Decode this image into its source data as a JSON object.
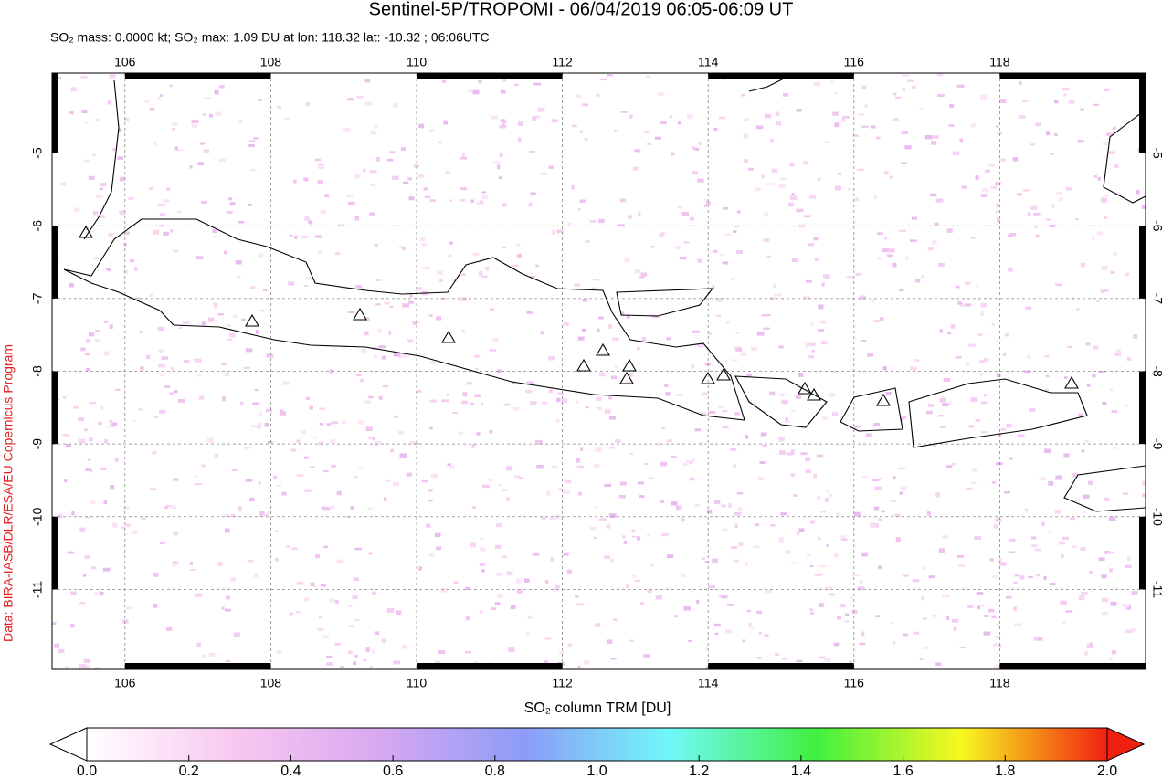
{
  "chart_data": {
    "type": "map",
    "title": "Sentinel-5P/TROPOMI - 06/04/2019 06:05-06:09 UT",
    "subtitle": "SO₂ mass: 0.0000 kt; SO₂ max: 1.09 DU at lon: 118.32 lat: -10.32 ; 06:06UTC",
    "credit": "Data: BIRA-IASB/DLR/ESA/EU Copernicus Program",
    "xlim": [
      105,
      120
    ],
    "ylim": [
      -12.1,
      -3.9
    ],
    "xticks": [
      106,
      108,
      110,
      112,
      114,
      116,
      118
    ],
    "yticks": [
      -5,
      -6,
      -7,
      -8,
      -9,
      -10,
      -11
    ],
    "grid": true,
    "colorbar": {
      "label": "SO₂ column TRM [DU]",
      "lim": [
        0,
        2
      ],
      "ticks": [
        {
          "value": 0,
          "label": "0.0"
        },
        0.2,
        0.4,
        0.6,
        0.8,
        {
          "value": 1,
          "label": "1.0"
        },
        1.2,
        1.4,
        1.6,
        1.8,
        {
          "value": 2,
          "label": "2.0"
        }
      ],
      "colors": [
        "#ffffff",
        "#f8c8f0",
        "#d8a8f0",
        "#8c9cf8",
        "#70f8f8",
        "#40f040",
        "#f8f820",
        "#f02010"
      ]
    }
  }
}
